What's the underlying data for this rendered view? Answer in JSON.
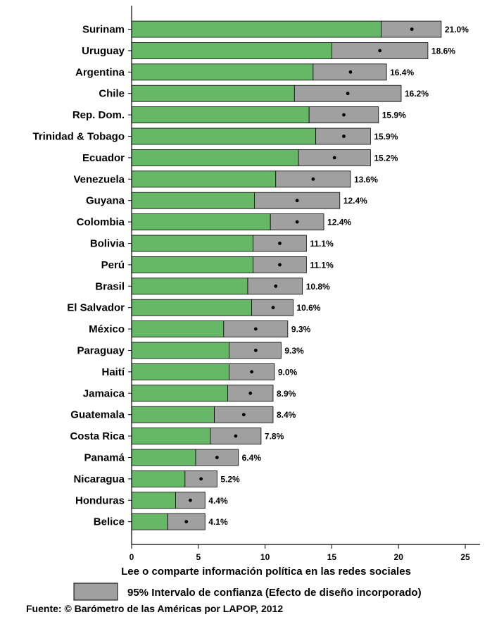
{
  "chart_data": {
    "type": "bar",
    "orientation": "horizontal",
    "xlabel": "Lee o comparte información política en las redes sociales",
    "xlim": [
      0,
      26
    ],
    "xticks": [
      "0",
      "5",
      "10",
      "15",
      "20",
      "25"
    ],
    "xtick_values": [
      0,
      5,
      10,
      15,
      20,
      25
    ],
    "categories": [
      "Surinam",
      "Uruguay",
      "Argentina",
      "Chile",
      "Rep. Dom.",
      "Trinidad & Tobago",
      "Ecuador",
      "Venezuela",
      "Guyana",
      "Colombia",
      "Bolivia",
      "Perú",
      "Brasil",
      "El Salvador",
      "México",
      "Paraguay",
      "Haití",
      "Jamaica",
      "Guatemala",
      "Costa Rica",
      "Panamá",
      "Nicaragua",
      "Honduras",
      "Belice"
    ],
    "values": [
      21.0,
      18.6,
      16.4,
      16.2,
      15.9,
      15.9,
      15.2,
      13.6,
      12.4,
      12.4,
      11.1,
      11.1,
      10.8,
      10.6,
      9.3,
      9.3,
      9.0,
      8.9,
      8.4,
      7.8,
      6.4,
      5.2,
      4.4,
      4.1
    ],
    "value_labels": [
      "21.0%",
      "18.6%",
      "16.4%",
      "16.2%",
      "15.9%",
      "15.9%",
      "15.2%",
      "13.6%",
      "12.4%",
      "12.4%",
      "11.1%",
      "11.1%",
      "10.8%",
      "10.6%",
      "9.3%",
      "9.3%",
      "9.0%",
      "8.9%",
      "8.4%",
      "7.8%",
      "6.4%",
      "5.2%",
      "4.4%",
      "4.1%"
    ],
    "ci_lower": [
      18.7,
      15.0,
      13.6,
      12.2,
      13.3,
      13.8,
      12.5,
      10.8,
      9.2,
      10.4,
      9.1,
      9.1,
      8.7,
      9.0,
      6.9,
      7.3,
      7.3,
      7.2,
      6.2,
      5.9,
      4.8,
      4.0,
      3.3,
      2.7
    ],
    "ci_upper": [
      23.2,
      22.2,
      19.1,
      20.2,
      18.5,
      17.9,
      17.9,
      16.4,
      15.6,
      14.4,
      13.1,
      13.1,
      12.8,
      12.1,
      11.7,
      11.2,
      10.7,
      10.6,
      10.6,
      9.7,
      8.0,
      6.4,
      5.5,
      5.5
    ],
    "colors": {
      "bar": "#66b866",
      "ci_box": "#a0a0a0",
      "point": "#000000",
      "axis": "#000000"
    },
    "legend": {
      "label": "95% Intervalo de confianza (Efecto de diseño incorporado)",
      "placement": "bottom"
    },
    "source": "Fuente: © Barómetro de las Américas por LAPOP, 2012",
    "grid": false
  }
}
